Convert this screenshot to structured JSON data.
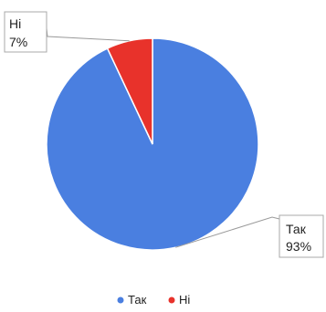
{
  "chart_data": {
    "type": "pie",
    "categories": [
      "Так",
      "Ні"
    ],
    "values": [
      93,
      7
    ],
    "labels": [
      "93%",
      "7%"
    ],
    "colors": [
      "#4a7fe0",
      "#e8322b"
    ],
    "legend": "bottom"
  }
}
